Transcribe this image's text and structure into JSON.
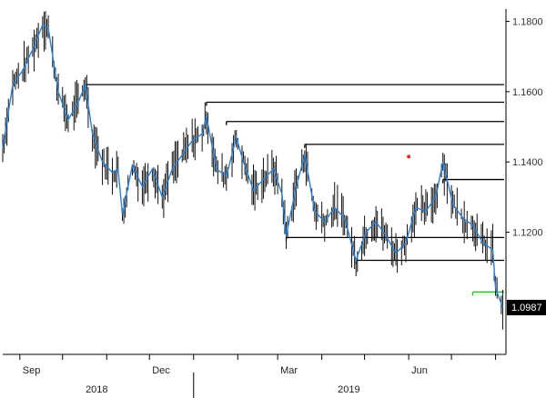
{
  "chart_data": {
    "type": "line",
    "title": "",
    "xlabel": "",
    "ylabel": "",
    "ylim": [
      1.0855,
      1.1835
    ],
    "y_ticks": [
      "1.1800",
      "1.1600",
      "1.1400",
      "1.1200"
    ],
    "y_tick_values": [
      1.18,
      1.16,
      1.14,
      1.12
    ],
    "x_months": [
      {
        "label": "Sep",
        "date": "2018-09-01"
      },
      {
        "label": "Dec",
        "date": "2018-12-01"
      },
      {
        "label": "Mar",
        "date": "2019-03-01"
      },
      {
        "label": "Jun",
        "date": "2019-06-01"
      }
    ],
    "x_years": [
      {
        "label": "2018",
        "date": "2018-10-25"
      },
      {
        "label": "2019",
        "date": "2019-04-20"
      }
    ],
    "year_divider_date": "2019-01-01",
    "x_range": [
      "2018-08-20",
      "2019-08-07"
    ],
    "grid": false,
    "last_value": {
      "label": "1.0987",
      "value": 1.0987,
      "color": "#000000"
    },
    "series": [
      {
        "color": "#2a7fd4",
        "points": [
          [
            "2018-08-20",
            1.144
          ],
          [
            "2018-08-27",
            1.162
          ],
          [
            "2018-09-03",
            1.166
          ],
          [
            "2018-09-10",
            1.172
          ],
          [
            "2018-09-17",
            1.179
          ],
          [
            "2018-09-21",
            1.178
          ],
          [
            "2018-09-28",
            1.16
          ],
          [
            "2018-10-05",
            1.152
          ],
          [
            "2018-10-12",
            1.157
          ],
          [
            "2018-10-17",
            1.162
          ],
          [
            "2018-10-22",
            1.148
          ],
          [
            "2018-10-29",
            1.14
          ],
          [
            "2018-11-05",
            1.137
          ],
          [
            "2018-11-09",
            1.138
          ],
          [
            "2018-11-12",
            1.125
          ],
          [
            "2018-11-19",
            1.139
          ],
          [
            "2018-11-26",
            1.133
          ],
          [
            "2018-12-03",
            1.138
          ],
          [
            "2018-12-10",
            1.13
          ],
          [
            "2018-12-17",
            1.138
          ],
          [
            "2018-12-24",
            1.142
          ],
          [
            "2018-12-31",
            1.146
          ],
          [
            "2019-01-07",
            1.148
          ],
          [
            "2019-01-10",
            1.153
          ],
          [
            "2019-01-17",
            1.138
          ],
          [
            "2019-01-24",
            1.136
          ],
          [
            "2019-01-31",
            1.147
          ],
          [
            "2019-02-05",
            1.14
          ],
          [
            "2019-02-12",
            1.132
          ],
          [
            "2019-02-19",
            1.135
          ],
          [
            "2019-02-26",
            1.138
          ],
          [
            "2019-03-04",
            1.131
          ],
          [
            "2019-03-07",
            1.119
          ],
          [
            "2019-03-14",
            1.133
          ],
          [
            "2019-03-20",
            1.142
          ],
          [
            "2019-03-27",
            1.126
          ],
          [
            "2019-04-03",
            1.123
          ],
          [
            "2019-04-10",
            1.127
          ],
          [
            "2019-04-17",
            1.124
          ],
          [
            "2019-04-25",
            1.112
          ],
          [
            "2019-05-02",
            1.12
          ],
          [
            "2019-05-09",
            1.123
          ],
          [
            "2019-05-16",
            1.119
          ],
          [
            "2019-05-23",
            1.114
          ],
          [
            "2019-05-30",
            1.117
          ],
          [
            "2019-06-06",
            1.127
          ],
          [
            "2019-06-13",
            1.126
          ],
          [
            "2019-06-20",
            1.13
          ],
          [
            "2019-06-25",
            1.14
          ],
          [
            "2019-07-02",
            1.128
          ],
          [
            "2019-07-09",
            1.124
          ],
          [
            "2019-07-16",
            1.122
          ],
          [
            "2019-07-23",
            1.117
          ],
          [
            "2019-07-30",
            1.115
          ],
          [
            "2019-08-01",
            1.104
          ],
          [
            "2019-08-06",
            1.0987
          ]
        ]
      }
    ],
    "support_resistance_lines": [
      {
        "from": "2018-10-17",
        "to": "2019-08-07",
        "value": 1.162,
        "color": "#000000"
      },
      {
        "from": "2019-01-10",
        "to": "2019-08-07",
        "value": 1.157,
        "color": "#000000"
      },
      {
        "from": "2019-01-24",
        "to": "2019-08-07",
        "value": 1.1515,
        "color": "#000000"
      },
      {
        "from": "2019-03-20",
        "to": "2019-08-07",
        "value": 1.145,
        "color": "#000000"
      },
      {
        "from": "2019-06-25",
        "to": "2019-08-07",
        "value": 1.135,
        "color": "#000000"
      },
      {
        "from": "2019-03-07",
        "to": "2019-08-07",
        "value": 1.1185,
        "color": "#000000"
      },
      {
        "from": "2019-04-25",
        "to": "2019-08-07",
        "value": 1.112,
        "color": "#000000"
      },
      {
        "from": "2019-07-16",
        "to": "2019-08-07",
        "value": 1.103,
        "color": "#22bb22"
      }
    ],
    "markers": [
      {
        "date": "2019-06-01",
        "value": 1.1415,
        "color": "#ff2222"
      }
    ]
  }
}
